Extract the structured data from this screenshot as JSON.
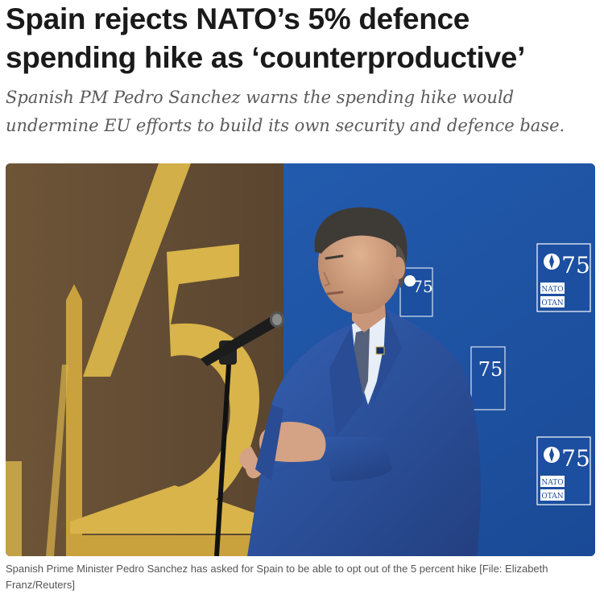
{
  "article": {
    "headline": "Spain rejects NATO’s 5% defence spending hike as ‘counterproductive’",
    "standfirst": "Spanish PM Pedro Sanchez warns the spending hike would undermine EU efforts to build its own security and defence base.",
    "caption": "Spanish Prime Minister Pedro Sanchez has asked for Spain to be able to opt out of the 5 percent hike [File: Elizabeth Franz/Reuters]"
  },
  "photo": {
    "logo_text_top": "NATO",
    "logo_text_bottom": "OTAN",
    "logo_number": "75",
    "colors": {
      "backdrop_blue": "#1f56a8",
      "backdrop_brown": "#6b5236",
      "gold": "#d8b44a",
      "suit_blue": "#2c4f9c"
    }
  }
}
